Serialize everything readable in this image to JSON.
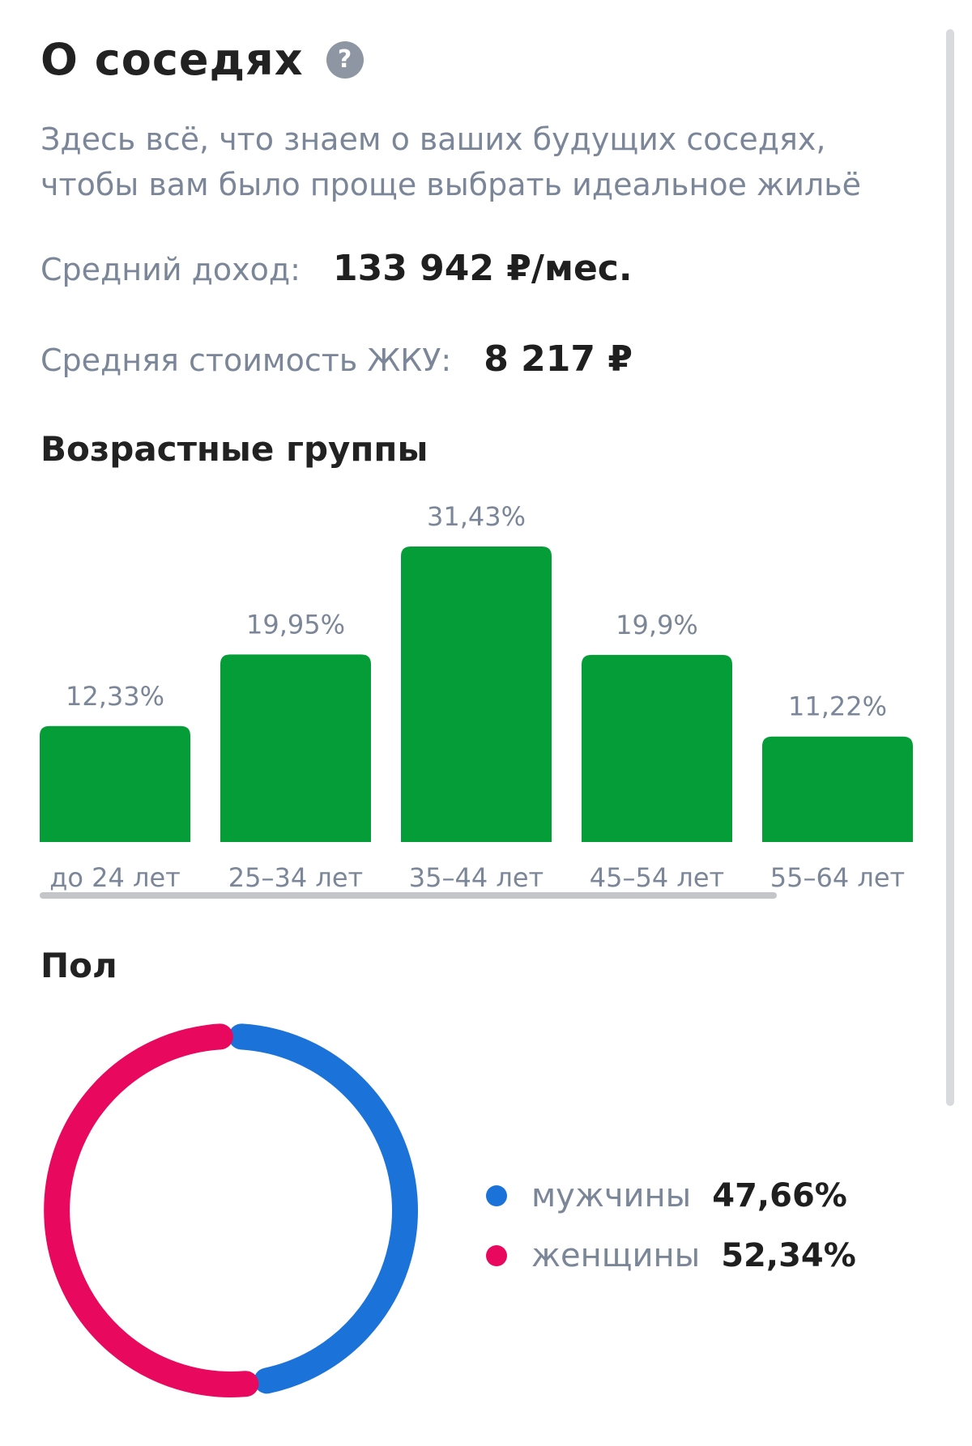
{
  "header": {
    "title": "О соседях",
    "help_icon": "question-circle-icon",
    "help_glyph": "?",
    "subtitle": "Здесь всё, что знаем о ваших будущих соседях, чтобы вам было проще выбрать идеальное жильё"
  },
  "stats": {
    "income_label": "Средний доход:",
    "income_value": "133 942 ₽/мес.",
    "utility_label": "Средняя стоимость ЖКУ:",
    "utility_value": "8 217 ₽"
  },
  "sections": {
    "age_title": "Возрастные группы",
    "sex_title": "Пол"
  },
  "colors": {
    "bar": "#049d38",
    "men": "#1b73d9",
    "women": "#e8095e",
    "axis_scroll": "#c3c5c9"
  },
  "chart_data": [
    {
      "type": "bar",
      "categories": [
        "до 24 лет",
        "25–34 лет",
        "35–44 лет",
        "45–54 лет",
        "55–64 лет"
      ],
      "values": [
        12.33,
        19.95,
        31.43,
        19.9,
        11.22
      ],
      "value_labels": [
        "12,33%",
        "19,95%",
        "31,43%",
        "19,9%",
        "11,22%"
      ],
      "ylim": [
        0,
        31.43
      ],
      "grid": false
    },
    {
      "type": "pie",
      "style": "donut",
      "labels": [
        "мужчины",
        "женщины"
      ],
      "values": [
        47.66,
        52.34
      ],
      "value_labels": [
        "47,66%",
        "52,34%"
      ],
      "legend": "right"
    }
  ]
}
